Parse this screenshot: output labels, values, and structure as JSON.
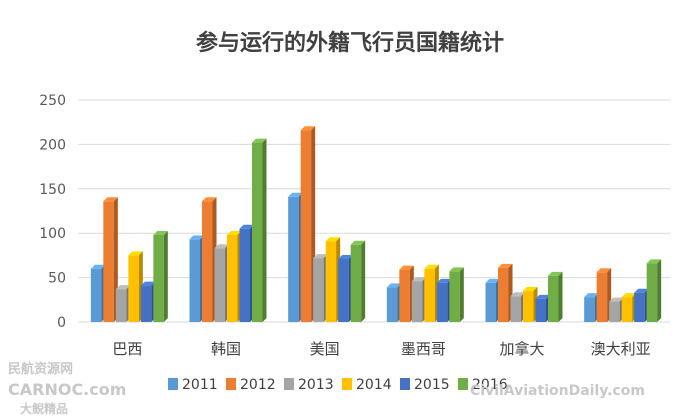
{
  "chart_data": {
    "type": "bar",
    "title": "参与运行的外籍飞行员国籍统计",
    "xlabel": "",
    "ylabel": "",
    "ylim": [
      0,
      250
    ],
    "yticks": [
      0,
      50,
      100,
      150,
      200,
      250
    ],
    "grid": true,
    "legend": "bottom",
    "categories": [
      "巴西",
      "韩国",
      "美国",
      "墨西哥",
      "加拿大",
      "澳大利亚"
    ],
    "series": [
      {
        "name": "2011",
        "color": "#5b9bd5",
        "values": [
          60,
          93,
          141,
          39,
          44,
          28
        ]
      },
      {
        "name": "2012",
        "color": "#ed7d31",
        "values": [
          136,
          136,
          216,
          59,
          61,
          56
        ]
      },
      {
        "name": "2013",
        "color": "#a5a5a5",
        "values": [
          37,
          83,
          72,
          46,
          29,
          23
        ]
      },
      {
        "name": "2014",
        "color": "#ffc000",
        "values": [
          75,
          98,
          91,
          60,
          35,
          28
        ]
      },
      {
        "name": "2015",
        "color": "#4472c4",
        "values": [
          41,
          105,
          71,
          44,
          26,
          33
        ]
      },
      {
        "name": "2016",
        "color": "#70ad47",
        "values": [
          98,
          202,
          87,
          57,
          52,
          66
        ]
      }
    ]
  },
  "watermarks": {
    "line1": "民航资源网",
    "line2": "CARNOC.com",
    "line3": "大鲵精品",
    "right": "CivilAviationDaily.com"
  }
}
